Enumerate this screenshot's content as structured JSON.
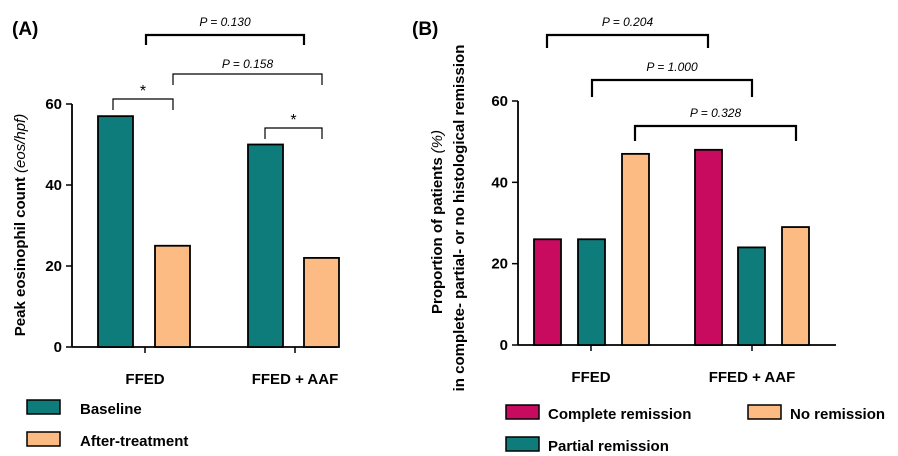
{
  "chart_data": [
    {
      "type": "bar",
      "panel_label": "(A)",
      "ylabel": "Peak eosinophil count",
      "ylabel_unit": "(eos/hpf)",
      "ylim": [
        0,
        60
      ],
      "yticks": [
        0,
        20,
        40,
        60
      ],
      "categories": [
        "FFED",
        "FFED + AAF"
      ],
      "series": [
        {
          "name": "Baseline",
          "color": "#0e7c7b",
          "values": [
            57,
            50
          ]
        },
        {
          "name": "After-treatment",
          "color": "#fdbb84",
          "values": [
            25,
            22
          ]
        }
      ],
      "annotations": [
        {
          "label": "*",
          "from": "FFED/Baseline",
          "to": "FFED/After-treatment"
        },
        {
          "label": "*",
          "from": "FFED + AAF/Baseline",
          "to": "FFED + AAF/After-treatment"
        },
        {
          "label": "P = 0.130",
          "from": "FFED/After-treatment",
          "to": "FFED + AAF/After-treatment"
        },
        {
          "label": "P = 0.158",
          "from": "FFED/After-treatment",
          "to": "FFED + AAF/After-treatment"
        }
      ],
      "legend_position": "bottom-left"
    },
    {
      "type": "bar",
      "panel_label": "(B)",
      "ylabel_line1": "Proportion of patients",
      "ylabel_unit": "(%)",
      "ylabel_line2": "in complete- partial- or no histological remission",
      "ylim": [
        0,
        60
      ],
      "yticks": [
        0,
        20,
        40,
        60
      ],
      "categories": [
        "FFED",
        "FFED + AAF"
      ],
      "series": [
        {
          "name": "Complete remission",
          "color": "#c80b5e",
          "values": [
            26,
            48
          ]
        },
        {
          "name": "Partial remission",
          "color": "#0e7c7b",
          "values": [
            26,
            24
          ]
        },
        {
          "name": "No remission",
          "color": "#fdbb84",
          "values": [
            47,
            29
          ]
        }
      ],
      "annotations": [
        {
          "label": "P = 0.204",
          "from": "FFED/Complete remission",
          "to": "FFED + AAF/Complete remission"
        },
        {
          "label": "P = 1.000",
          "from": "FFED/Partial remission",
          "to": "FFED + AAF/Partial remission"
        },
        {
          "label": "P = 0.328",
          "from": "FFED/No remission",
          "to": "FFED + AAF/No remission"
        }
      ],
      "legend_position": "bottom"
    }
  ]
}
